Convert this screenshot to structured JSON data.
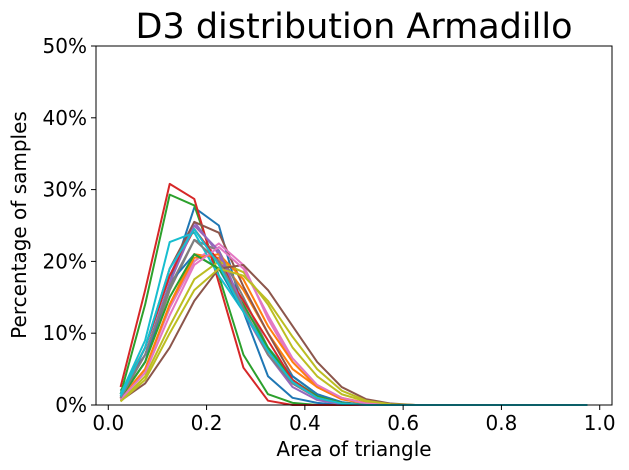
{
  "chart_data": {
    "type": "line",
    "title": "D3 distribution Armadillo",
    "xlabel": "Area of triangle",
    "ylabel": "Percentage of samples",
    "xlim": [
      -0.025,
      1.025
    ],
    "ylim": [
      0,
      50
    ],
    "xticks": [
      0.0,
      0.2,
      0.4,
      0.6,
      0.8,
      1.0
    ],
    "xtick_labels": [
      "0.0",
      "0.2",
      "0.4",
      "0.6",
      "0.8",
      "1.0"
    ],
    "yticks": [
      0,
      10,
      20,
      30,
      40,
      50
    ],
    "ytick_labels": [
      "0%",
      "10%",
      "20%",
      "30%",
      "40%",
      "50%"
    ],
    "grid": false,
    "legend": "none",
    "x": [
      0.025,
      0.075,
      0.125,
      0.175,
      0.225,
      0.275,
      0.325,
      0.375,
      0.425,
      0.475,
      0.525,
      0.575,
      0.625,
      0.675,
      0.725,
      0.775,
      0.825,
      0.875,
      0.925,
      0.975
    ],
    "series": [
      {
        "color": "#1f77b4",
        "values": [
          2.0,
          7.0,
          17.0,
          27.5,
          25.0,
          13.0,
          4.0,
          1.0,
          0.3,
          0,
          0,
          0,
          0,
          0,
          0,
          0,
          0,
          0,
          0,
          0
        ]
      },
      {
        "color": "#ff7f0e",
        "values": [
          1.0,
          5.0,
          14.0,
          21.0,
          20.5,
          16.0,
          10.0,
          5.0,
          2.5,
          1.0,
          0.3,
          0,
          0,
          0,
          0,
          0,
          0,
          0,
          0,
          0
        ]
      },
      {
        "color": "#2ca02c",
        "values": [
          1.5,
          14.0,
          29.3,
          27.8,
          18.0,
          7.0,
          1.5,
          0.3,
          0,
          0,
          0,
          0,
          0,
          0,
          0,
          0,
          0,
          0,
          0,
          0
        ]
      },
      {
        "color": "#d62728",
        "values": [
          2.5,
          16.0,
          30.8,
          28.7,
          17.0,
          5.2,
          0.6,
          0,
          0,
          0,
          0,
          0,
          0,
          0,
          0,
          0,
          0,
          0,
          0,
          0
        ]
      },
      {
        "color": "#9467bd",
        "values": [
          1.0,
          8.0,
          18.0,
          25.5,
          21.0,
          13.0,
          7.0,
          3.0,
          1.0,
          0.3,
          0,
          0,
          0,
          0,
          0,
          0,
          0,
          0,
          0,
          0
        ]
      },
      {
        "color": "#8c564b",
        "values": [
          1.5,
          8.0,
          19.0,
          25.5,
          24.0,
          16.5,
          10.0,
          4.0,
          1.5,
          0.3,
          0,
          0,
          0,
          0,
          0,
          0,
          0,
          0,
          0,
          0
        ]
      },
      {
        "color": "#e377c2",
        "values": [
          0.8,
          5.0,
          13.5,
          20.0,
          22.5,
          19.5,
          12.0,
          6.0,
          2.5,
          0.8,
          0.2,
          0,
          0,
          0,
          0,
          0,
          0,
          0,
          0,
          0
        ]
      },
      {
        "color": "#7f7f7f",
        "values": [
          1.0,
          6.0,
          16.0,
          23.0,
          21.5,
          15.0,
          8.0,
          3.0,
          1.0,
          0.2,
          0,
          0,
          0,
          0,
          0,
          0,
          0,
          0,
          0,
          0
        ]
      },
      {
        "color": "#bcbd22",
        "values": [
          0.5,
          4.0,
          11.0,
          17.5,
          20.0,
          18.5,
          14.0,
          8.0,
          4.0,
          1.5,
          0.5,
          0.1,
          0,
          0,
          0,
          0,
          0,
          0,
          0,
          0
        ]
      },
      {
        "color": "#17becf",
        "values": [
          1.5,
          9.0,
          22.7,
          24.0,
          18.0,
          13.0,
          8.0,
          4.0,
          1.5,
          0.3,
          0,
          0,
          0,
          0,
          0,
          0,
          0,
          0,
          0,
          0
        ]
      },
      {
        "color": "#1f77b4",
        "values": [
          1.0,
          6.0,
          17.0,
          21.0,
          19.0,
          13.0,
          7.5,
          4.0,
          1.5,
          0.4,
          0,
          0,
          0,
          0,
          0,
          0,
          0,
          0,
          0,
          0
        ]
      },
      {
        "color": "#ff7f0e",
        "values": [
          0.8,
          5.0,
          14.0,
          20.5,
          21.0,
          17.5,
          11.0,
          6.0,
          2.5,
          0.8,
          0.2,
          0,
          0,
          0,
          0,
          0,
          0,
          0,
          0,
          0
        ]
      },
      {
        "color": "#2ca02c",
        "values": [
          1.0,
          6.0,
          15.0,
          21.0,
          19.0,
          14.0,
          8.0,
          3.5,
          1.2,
          0.3,
          0,
          0,
          0,
          0,
          0,
          0,
          0,
          0,
          0,
          0
        ]
      },
      {
        "color": "#d62728",
        "values": [
          1.0,
          8.0,
          18.0,
          24.5,
          20.0,
          14.5,
          9.0,
          3.5,
          1.0,
          0.2,
          0,
          0,
          0,
          0,
          0,
          0,
          0,
          0,
          0,
          0
        ]
      },
      {
        "color": "#9467bd",
        "values": [
          1.2,
          7.0,
          17.0,
          25.0,
          21.5,
          13.5,
          7.0,
          2.5,
          0.7,
          0.1,
          0,
          0,
          0,
          0,
          0,
          0,
          0,
          0,
          0,
          0
        ]
      },
      {
        "color": "#8c564b",
        "values": [
          0.6,
          3.0,
          8.0,
          14.5,
          19.0,
          19.5,
          16.0,
          11.0,
          6.0,
          2.5,
          0.8,
          0.2,
          0,
          0,
          0,
          0,
          0,
          0,
          0,
          0
        ]
      },
      {
        "color": "#e377c2",
        "values": [
          0.8,
          4.5,
          12.5,
          19.5,
          22.0,
          19.0,
          12.5,
          6.5,
          2.8,
          1.0,
          0.2,
          0,
          0,
          0,
          0,
          0,
          0,
          0,
          0,
          0
        ]
      },
      {
        "color": "#7f7f7f",
        "values": [
          1.0,
          7.0,
          16.5,
          23.0,
          20.0,
          13.5,
          7.0,
          3.0,
          1.0,
          0.2,
          0,
          0,
          0,
          0,
          0,
          0,
          0,
          0,
          0,
          0
        ]
      },
      {
        "color": "#bcbd22",
        "values": [
          0.5,
          3.5,
          10.0,
          16.0,
          19.0,
          18.0,
          14.5,
          9.5,
          5.0,
          2.0,
          0.6,
          0.1,
          0,
          0,
          0,
          0,
          0,
          0,
          0,
          0
        ]
      },
      {
        "color": "#17becf",
        "values": [
          1.2,
          8.0,
          19.0,
          24.5,
          19.5,
          13.0,
          7.5,
          3.2,
          1.0,
          0.2,
          0,
          0,
          0,
          0,
          0,
          0,
          0,
          0,
          0,
          0
        ]
      }
    ]
  }
}
